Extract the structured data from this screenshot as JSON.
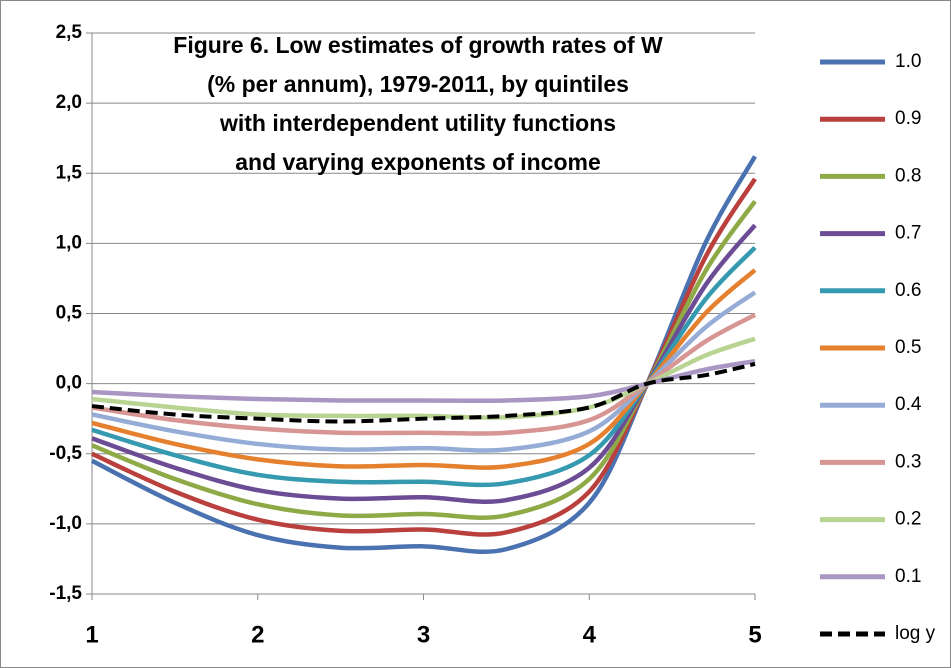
{
  "chart_data": {
    "type": "line",
    "title": [
      "Figure 6. Low estimates of growth rates of W",
      "(% per annum), 1979-2011, by quintiles",
      "with interdependent utility functions",
      "and varying exponents of income"
    ],
    "x": [
      1,
      1.5,
      2,
      2.5,
      3,
      3.5,
      4,
      4.35,
      4.7,
      5
    ],
    "xlim": [
      1,
      5
    ],
    "xticks": [
      1,
      2,
      3,
      4,
      5
    ],
    "ylim": [
      -1.5,
      2.5
    ],
    "yticks": [
      {
        "value": -1.5,
        "label": "-1,5"
      },
      {
        "value": -1,
        "label": "-1,0"
      },
      {
        "value": -0.5,
        "label": "-0,5"
      },
      {
        "value": 0,
        "label": "0,0"
      },
      {
        "value": 0.5,
        "label": "0,5"
      },
      {
        "value": 1,
        "label": "1,0"
      },
      {
        "value": 1.5,
        "label": "1,5"
      },
      {
        "value": 2,
        "label": "2,0"
      },
      {
        "value": 2.5,
        "label": "2,5"
      }
    ],
    "grid": true,
    "legend": "right",
    "series": [
      {
        "name": "1.0",
        "color": "#4a72b0",
        "values": [
          -0.55,
          -0.85,
          -1.08,
          -1.17,
          -1.16,
          -1.18,
          -0.85,
          0,
          1.0,
          1.62
        ]
      },
      {
        "name": "0.9",
        "color": "#b9403d",
        "values": [
          -0.5,
          -0.77,
          -0.97,
          -1.05,
          -1.04,
          -1.06,
          -0.77,
          0,
          0.9,
          1.46
        ]
      },
      {
        "name": "0.8",
        "color": "#8eaa46",
        "values": [
          -0.44,
          -0.68,
          -0.86,
          -0.94,
          -0.93,
          -0.94,
          -0.68,
          0,
          0.8,
          1.3
        ]
      },
      {
        "name": "0.7",
        "color": "#6c4c94",
        "values": [
          -0.39,
          -0.6,
          -0.76,
          -0.82,
          -0.81,
          -0.83,
          -0.6,
          0,
          0.7,
          1.13
        ]
      },
      {
        "name": "0.6",
        "color": "#3599b0",
        "values": [
          -0.33,
          -0.51,
          -0.65,
          -0.7,
          -0.7,
          -0.71,
          -0.51,
          0,
          0.6,
          0.97
        ]
      },
      {
        "name": "0.5",
        "color": "#e5812e",
        "values": [
          -0.28,
          -0.43,
          -0.54,
          -0.59,
          -0.58,
          -0.59,
          -0.43,
          0,
          0.5,
          0.81
        ]
      },
      {
        "name": "0.4",
        "color": "#95acd6",
        "values": [
          -0.22,
          -0.34,
          -0.43,
          -0.47,
          -0.46,
          -0.47,
          -0.34,
          0,
          0.4,
          0.65
        ]
      },
      {
        "name": "0.3",
        "color": "#d79593",
        "values": [
          -0.17,
          -0.26,
          -0.32,
          -0.35,
          -0.35,
          -0.35,
          -0.26,
          0,
          0.3,
          0.49
        ]
      },
      {
        "name": "0.2",
        "color": "#b9d492",
        "values": [
          -0.11,
          -0.17,
          -0.22,
          -0.23,
          -0.23,
          -0.24,
          -0.17,
          0,
          0.2,
          0.32
        ]
      },
      {
        "name": "0.1",
        "color": "#a996c2",
        "values": [
          -0.06,
          -0.09,
          -0.11,
          -0.12,
          -0.12,
          -0.12,
          -0.09,
          0,
          0.1,
          0.16
        ]
      },
      {
        "name": "log y",
        "color": "#000000",
        "dash": true,
        "values": [
          -0.16,
          -0.22,
          -0.25,
          -0.27,
          -0.25,
          -0.23,
          -0.17,
          0,
          0.06,
          0.14
        ]
      }
    ]
  }
}
